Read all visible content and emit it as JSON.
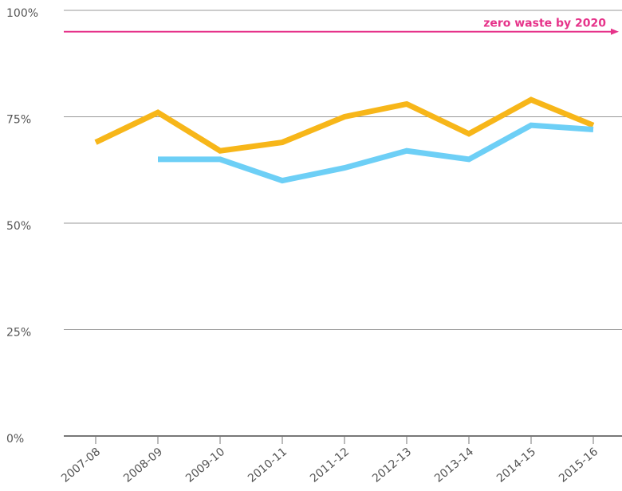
{
  "chart_data": {
    "type": "line",
    "categories": [
      "2007-08",
      "2008-09",
      "2009-10",
      "2010-11",
      "2011-12",
      "2012-13",
      "2013-14",
      "2014-15",
      "2015-16"
    ],
    "series": [
      {
        "color": "#f7b619",
        "values": [
          69,
          76,
          67,
          69,
          75,
          78,
          71,
          79,
          73
        ]
      },
      {
        "color": "#6dcff6",
        "values": [
          null,
          65,
          65,
          60,
          63,
          67,
          65,
          73,
          72
        ]
      }
    ],
    "ylim": [
      0,
      100
    ],
    "yticks": [
      {
        "value": 0,
        "label": "0%"
      },
      {
        "value": 25,
        "label": "25%"
      },
      {
        "value": 50,
        "label": "50%"
      },
      {
        "value": 75,
        "label": "75%"
      },
      {
        "value": 100,
        "label": "100%"
      }
    ],
    "grid": true,
    "annotations": [
      {
        "text": "zero waste by 2020",
        "y": 95,
        "color": "#e6338a"
      }
    ]
  }
}
